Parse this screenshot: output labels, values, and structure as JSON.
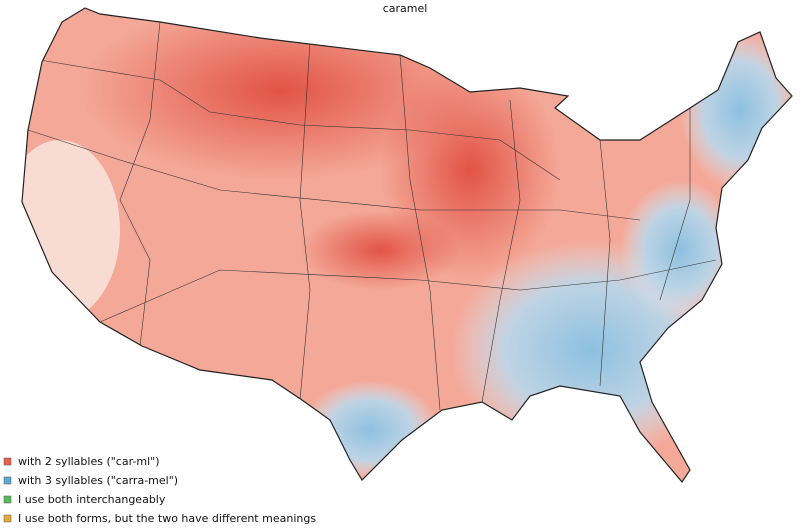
{
  "title": "caramel",
  "legend": [
    {
      "label": "with 2 syllables (\"car-ml\")",
      "color": "#e8604c"
    },
    {
      "label": "with 3 syllables (\"carra-mel\")",
      "color": "#5fa8d8"
    },
    {
      "label": "I use both interchangeably",
      "color": "#5cb85c"
    },
    {
      "label": "I use both forms, but the two have different meanings",
      "color": "#e8a838"
    }
  ]
}
